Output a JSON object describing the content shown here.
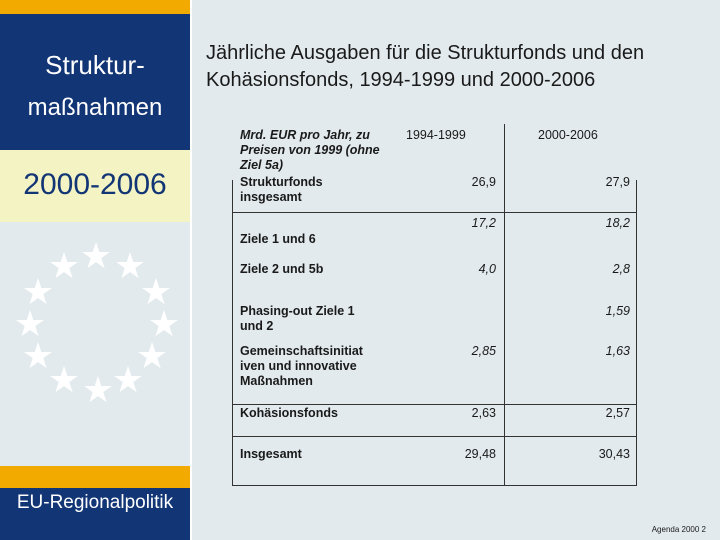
{
  "sidebar": {
    "title_line1": "Struktur-",
    "title_line2": "maßnahmen",
    "period": "2000-2006",
    "footer_label": "EU-Regionalpolitik"
  },
  "heading": "Jährliche Ausgaben für die Strukturfonds und den Kohäsionsfonds, 1994-1999 und 2000-2006",
  "table": {
    "row_header": "Mrd. EUR pro Jahr, zu Preisen von 1999 (ohne Ziel 5a)",
    "col1": "1994-1999",
    "col2": "2000-2006",
    "rows": [
      {
        "label": "Strukturfonds insgesamt",
        "v1": "26,9",
        "v2": "27,9"
      },
      {
        "label": "",
        "v1": "17,2",
        "v2": "18,2"
      },
      {
        "label": "Ziele 1 und 6",
        "v1": "",
        "v2": ""
      },
      {
        "label": "Ziele 2 und 5b",
        "v1": "4,0",
        "v2": "2,8"
      },
      {
        "label": "Phasing-out Ziele 1 und 2",
        "v1": "",
        "v2": "1,59"
      },
      {
        "label": "Gemeinschaftsinitiativen und innovative Maßnahmen",
        "v1": "2,85",
        "v2": "1,63"
      },
      {
        "label": "Kohäsionsfonds",
        "v1": "2,63",
        "v2": "2,57"
      },
      {
        "label": "Insgesamt",
        "v1": "29,48",
        "v2": "30,43"
      }
    ]
  },
  "footer": {
    "agenda": "Agenda 2000 2"
  },
  "colors": {
    "navy": "#123575",
    "gold": "#f2a900",
    "cream": "#f3f3c3",
    "background": "#e2eaed"
  }
}
